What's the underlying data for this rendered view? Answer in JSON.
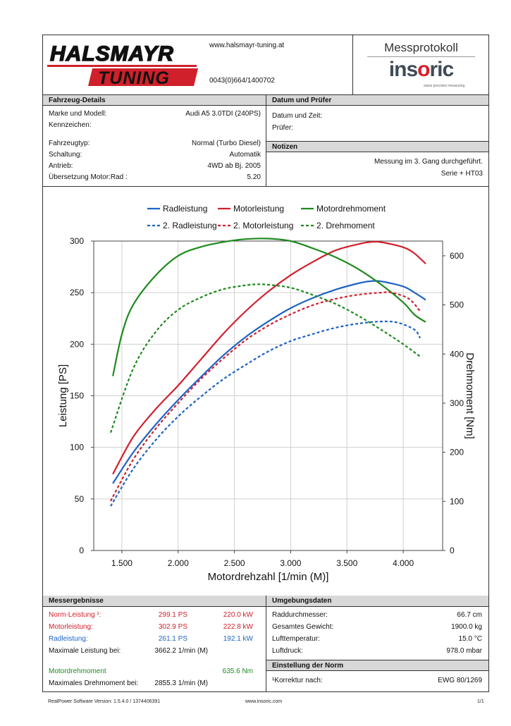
{
  "header": {
    "logo_top": "HALSMAYR",
    "logo_bottom": "TUNING",
    "url": "www.halsmayr-tuning.at",
    "phone": "0043(0)664/1400702",
    "protocol_title": "Messprotokoll",
    "brand": "insoric",
    "brand_tagline": "swiss precision measuring"
  },
  "vehicle": {
    "title": "Fahrzeug-Details",
    "rows": [
      {
        "label": "Marke und Modell:",
        "value": "Audi A5 3.0TDI  (240PS)"
      },
      {
        "label": "Kennzeichen:",
        "value": ""
      },
      {
        "label": "Fahrzeugtyp:",
        "value": "Normal (Turbo Diesel)"
      },
      {
        "label": "Schaltung:",
        "value": "Automatik"
      },
      {
        "label": "Antrieb:",
        "value": "4WD ab Bj. 2005"
      },
      {
        "label": "Übersetzung Motor:Rad :",
        "value": "5.20"
      }
    ]
  },
  "date_section": {
    "title": "Datum und Prüfer",
    "date_label": "Datum und Zeit:",
    "tester_label": "Prüfer:"
  },
  "notes": {
    "title": "Notizen",
    "line1": "Messung im 3. Gang durchgeführt.",
    "line2": "Serie + HT03"
  },
  "chart_data": {
    "type": "line",
    "legend": [
      {
        "name": "Radleistung",
        "color": "#1e63c4",
        "dashed": false
      },
      {
        "name": "Motorleistung",
        "color": "#d0202b",
        "dashed": false
      },
      {
        "name": "Motordrehmoment",
        "color": "#1e8a1e",
        "dashed": false
      },
      {
        "name": "2. Radleistung",
        "color": "#1e63c4",
        "dashed": true
      },
      {
        "name": "2. Motorleistung",
        "color": "#d0202b",
        "dashed": true
      },
      {
        "name": "2. Drehmoment",
        "color": "#1e8a1e",
        "dashed": true
      }
    ],
    "xlabel": "Motordrehzahl [1/min (M)]",
    "ylabel": "Leistung [PS]",
    "y2label": "Drehmoment [Nm]",
    "xlim": [
      1250,
      4350
    ],
    "ylim": [
      0,
      300
    ],
    "y2lim": [
      0,
      630
    ],
    "x_ticks": [
      "1.500",
      "2.000",
      "2.500",
      "3.000",
      "3.500",
      "4.000"
    ],
    "x_tick_values": [
      1500,
      2000,
      2500,
      3000,
      3500,
      4000
    ],
    "y_ticks": [
      "0",
      "50",
      "100",
      "150",
      "200",
      "250",
      "300"
    ],
    "y_tick_values": [
      0,
      50,
      100,
      150,
      200,
      250,
      300
    ],
    "y2_ticks": [
      "0",
      "100",
      "200",
      "300",
      "400",
      "500",
      "600"
    ],
    "y2_tick_values": [
      0,
      100,
      200,
      300,
      400,
      500,
      600
    ],
    "grid": true,
    "series": [
      {
        "name": "Radleistung",
        "axis": "left",
        "color": "#1e63c4",
        "dashed": false,
        "x": [
          1420,
          1600,
          1800,
          2000,
          2200,
          2400,
          2600,
          2800,
          3000,
          3200,
          3400,
          3600,
          3700,
          3800,
          4000,
          4100,
          4200
        ],
        "y": [
          65,
          95,
          122,
          146,
          168,
          189,
          207,
          222,
          235,
          245,
          253,
          259,
          261,
          261,
          256,
          250,
          243
        ]
      },
      {
        "name": "Motorleistung",
        "axis": "left",
        "color": "#d0202b",
        "dashed": false,
        "x": [
          1420,
          1600,
          1800,
          2000,
          2200,
          2400,
          2600,
          2800,
          3000,
          3200,
          3400,
          3600,
          3700,
          3800,
          4000,
          4100,
          4200
        ],
        "y": [
          74,
          110,
          137,
          160,
          185,
          210,
          232,
          251,
          267,
          280,
          291,
          297,
          299,
          299,
          294,
          288,
          278
        ]
      },
      {
        "name": "Motordrehmoment",
        "axis": "right",
        "color": "#1e8a1e",
        "dashed": false,
        "x": [
          1420,
          1500,
          1600,
          1800,
          2000,
          2200,
          2400,
          2600,
          2800,
          3000,
          3200,
          3400,
          3600,
          3800,
          4000,
          4100,
          4200
        ],
        "y": [
          355,
          440,
          500,
          560,
          600,
          618,
          628,
          634,
          635,
          630,
          615,
          597,
          573,
          542,
          505,
          480,
          465
        ]
      },
      {
        "name": "2. Radleistung",
        "axis": "left",
        "color": "#1e63c4",
        "dashed": true,
        "x": [
          1400,
          1600,
          1800,
          2000,
          2200,
          2400,
          2600,
          2800,
          3000,
          3200,
          3400,
          3600,
          3800,
          3950,
          4100,
          4150
        ],
        "y": [
          43,
          79,
          107,
          130,
          149,
          166,
          180,
          193,
          203,
          210,
          216,
          220,
          222,
          221,
          214,
          206
        ]
      },
      {
        "name": "2. Motorleistung",
        "axis": "left",
        "color": "#d0202b",
        "dashed": true,
        "x": [
          1400,
          1600,
          1800,
          2000,
          2200,
          2400,
          2600,
          2800,
          3000,
          3200,
          3400,
          3600,
          3800,
          3900,
          4050,
          4150
        ],
        "y": [
          48,
          88,
          118,
          143,
          166,
          186,
          204,
          218,
          229,
          238,
          244,
          248,
          250,
          250,
          244,
          232
        ]
      },
      {
        "name": "2. Drehmoment",
        "axis": "right",
        "color": "#1e8a1e",
        "dashed": true,
        "x": [
          1400,
          1600,
          1800,
          2000,
          2200,
          2400,
          2600,
          2700,
          2800,
          3000,
          3200,
          3400,
          3600,
          3800,
          4000,
          4150
        ],
        "y": [
          240,
          370,
          445,
          490,
          515,
          532,
          540,
          542,
          541,
          535,
          520,
          502,
          478,
          450,
          420,
          395
        ]
      }
    ]
  },
  "results": {
    "title": "Messergebnisse",
    "norm_label": "Norm-Leistung ¹:",
    "norm_ps": "299.1 PS",
    "norm_kw": "220.0 kW",
    "motor_label": "Motorleistung:",
    "motor_ps": "302.9 PS",
    "motor_kw": "222.8 kW",
    "rad_label": "Radleistung:",
    "rad_ps": "261.1 PS",
    "rad_kw": "192.1 kW",
    "max_power_label": "Maximale Leistung bei:",
    "max_power_rpm": "3662.2 1/min (M)",
    "torque_label": "Motordrehmoment",
    "torque_value": "635.6 Nm",
    "max_torque_label": "Maximales Drehmoment bei:",
    "max_torque_rpm": "2855.3 1/min (M)"
  },
  "environment": {
    "title": "Umgebungsdaten",
    "rows": [
      {
        "label": "Raddurchmesser:",
        "value": "66.7 cm"
      },
      {
        "label": "Gesamtes Gewicht:",
        "value": "1900.0 kg"
      },
      {
        "label": "Lufttemperatur:",
        "value": "15.0 °C"
      },
      {
        "label": "Luftdruck:",
        "value": "978.0 mbar"
      }
    ]
  },
  "norm": {
    "title": "Einstellung der Norm",
    "label": "¹Korrektur nach:",
    "value": "EWG 80/1269"
  },
  "footer": {
    "software": "RealPower Software Version: 1.5.4.0 / 1374406391",
    "url": "www.insoric.com",
    "page": "1/1"
  }
}
